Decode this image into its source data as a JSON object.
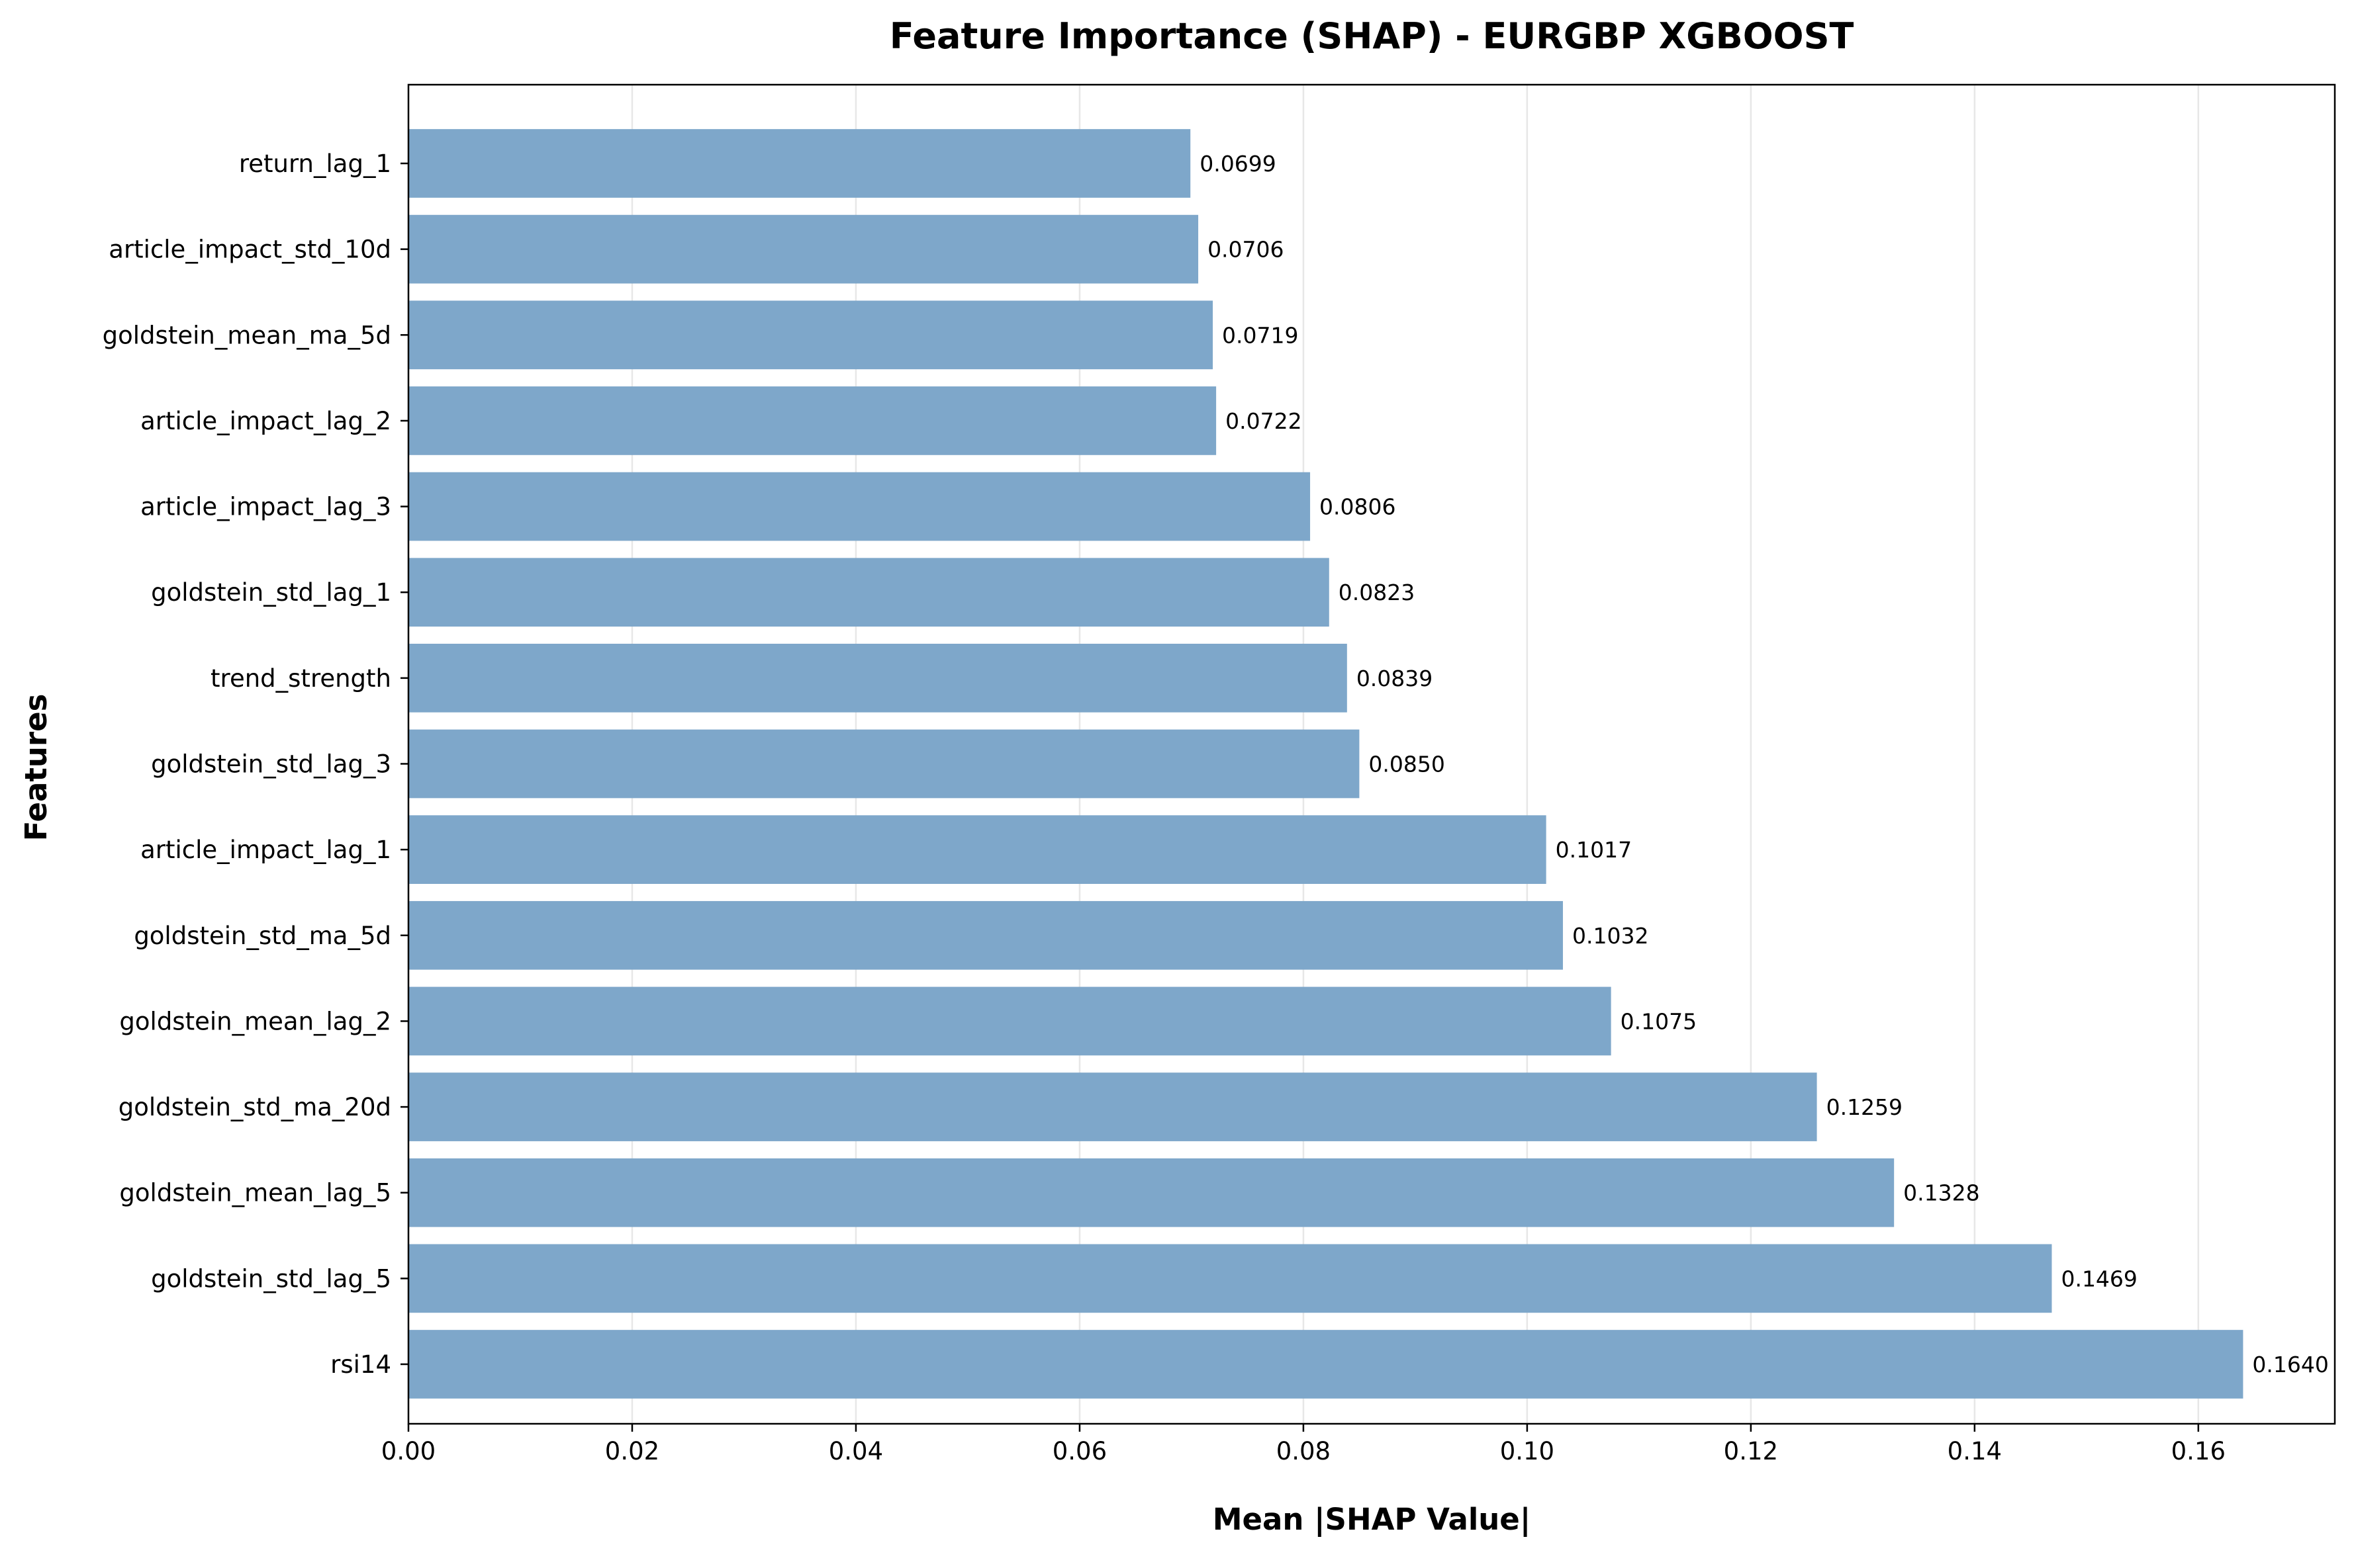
{
  "chart_data": {
    "type": "bar",
    "orientation": "horizontal",
    "title": "Feature Importance (SHAP) - EURGBP XGBOOST",
    "xlabel": "Mean |SHAP Value|",
    "ylabel": "Features",
    "categories": [
      "return_lag_1",
      "article_impact_std_10d",
      "goldstein_mean_ma_5d",
      "article_impact_lag_2",
      "article_impact_lag_3",
      "goldstein_std_lag_1",
      "trend_strength",
      "goldstein_std_lag_3",
      "article_impact_lag_1",
      "goldstein_std_ma_5d",
      "goldstein_mean_lag_2",
      "goldstein_std_ma_20d",
      "goldstein_mean_lag_5",
      "goldstein_std_lag_5",
      "rsi14"
    ],
    "values": [
      0.0699,
      0.0706,
      0.0719,
      0.0722,
      0.0806,
      0.0823,
      0.0839,
      0.085,
      0.1017,
      0.1032,
      0.1075,
      0.1259,
      0.1328,
      0.1469,
      0.164
    ],
    "data_labels": [
      "0.0699",
      "0.0706",
      "0.0719",
      "0.0722",
      "0.0806",
      "0.0823",
      "0.0839",
      "0.0850",
      "0.1017",
      "0.1032",
      "0.1075",
      "0.1259",
      "0.1328",
      "0.1469",
      "0.1640"
    ],
    "xlim": [
      0,
      0.1722
    ],
    "xticks": [
      0.0,
      0.02,
      0.04,
      0.06,
      0.08,
      0.1,
      0.12,
      0.14,
      0.16
    ],
    "xtick_labels": [
      "0.00",
      "0.02",
      "0.04",
      "0.06",
      "0.08",
      "0.10",
      "0.12",
      "0.14",
      "0.16"
    ],
    "grid": "x-axis only",
    "bar_color": "#7ea7ca"
  }
}
